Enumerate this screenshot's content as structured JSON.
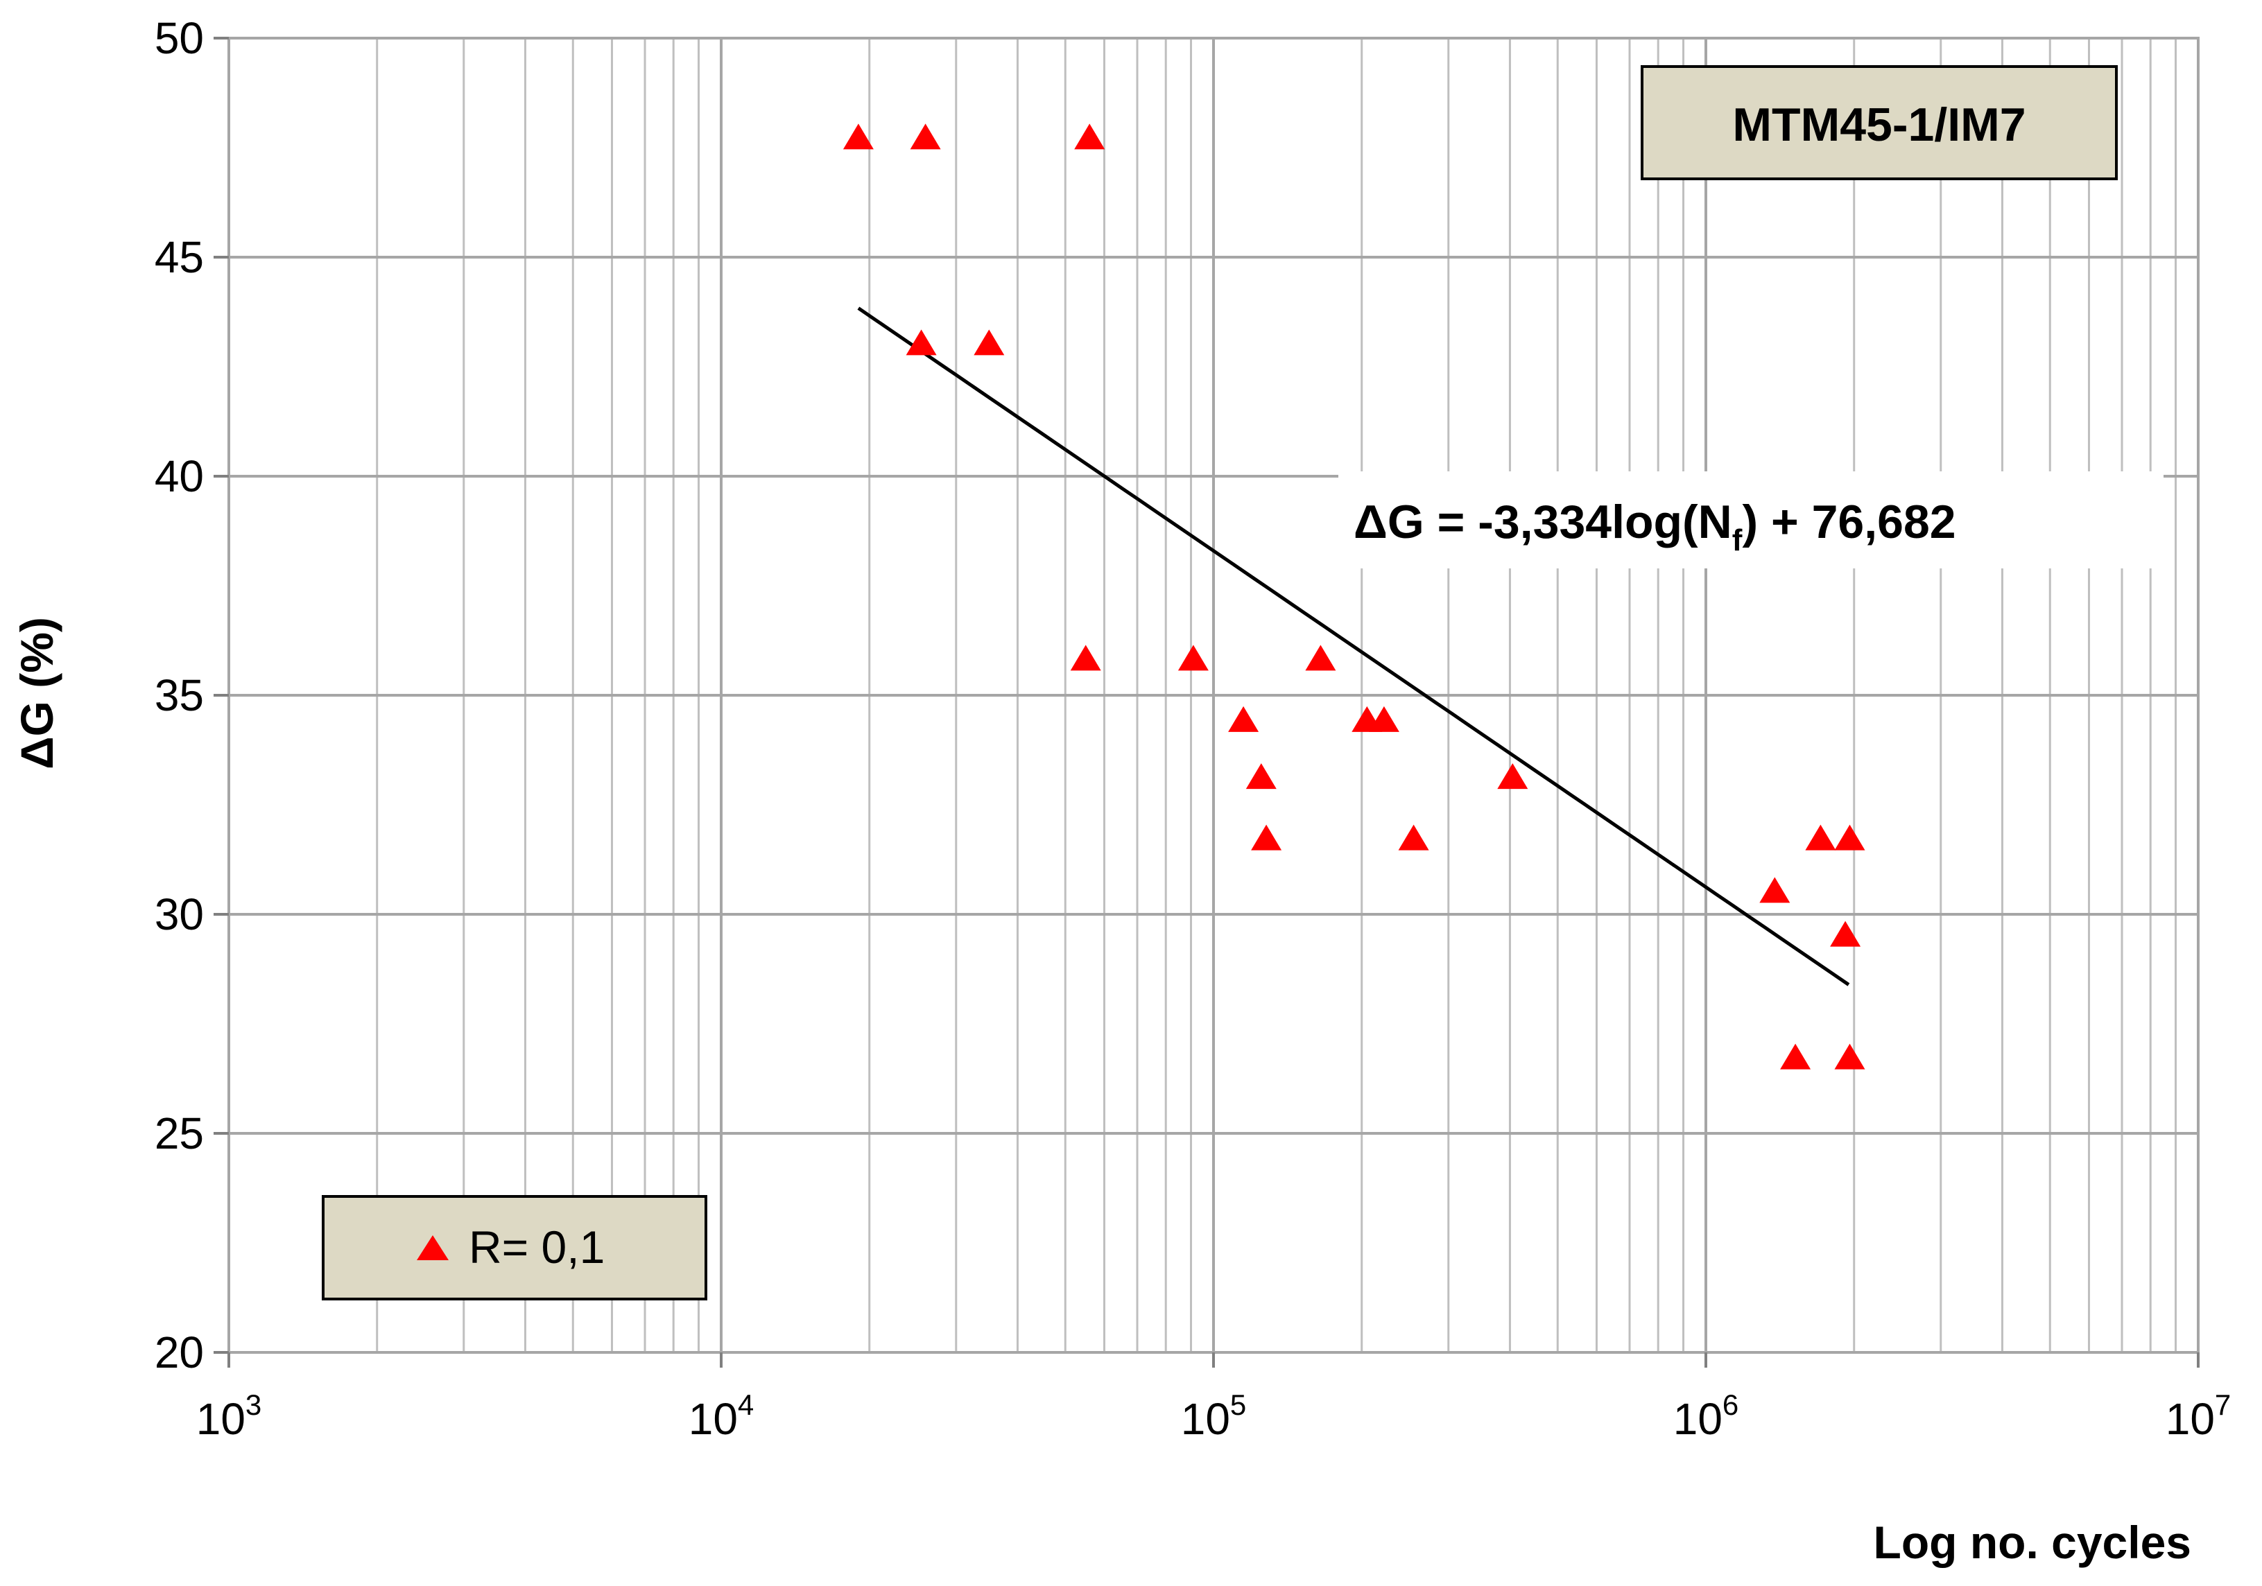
{
  "chart_data": {
    "type": "scatter",
    "title": "MTM45-1/IM7",
    "xlabel": "Log no. cycles",
    "ylabel": "ΔG (%)",
    "x_scale": "log",
    "xlim": [
      1000,
      10000000
    ],
    "ylim": [
      20,
      50
    ],
    "y_ticks": [
      20,
      25,
      30,
      35,
      40,
      45,
      50
    ],
    "x_ticks": [
      {
        "value": 1000,
        "base": "10",
        "exp": "3"
      },
      {
        "value": 10000,
        "base": "10",
        "exp": "4"
      },
      {
        "value": 100000,
        "base": "10",
        "exp": "5"
      },
      {
        "value": 1000000,
        "base": "10",
        "exp": "6"
      },
      {
        "value": 10000000,
        "base": "10",
        "exp": "7"
      }
    ],
    "grid": true,
    "series": [
      {
        "name": "R= 0,1",
        "color": "#ff0000",
        "marker": "triangle",
        "points": [
          {
            "x": 19000,
            "y": 47.7
          },
          {
            "x": 26000,
            "y": 47.7
          },
          {
            "x": 56000,
            "y": 47.7
          },
          {
            "x": 25500,
            "y": 43.0
          },
          {
            "x": 35000,
            "y": 43.0
          },
          {
            "x": 55000,
            "y": 35.8
          },
          {
            "x": 91000,
            "y": 35.8
          },
          {
            "x": 165000,
            "y": 35.8
          },
          {
            "x": 115000,
            "y": 34.4
          },
          {
            "x": 205000,
            "y": 34.4
          },
          {
            "x": 222000,
            "y": 34.4
          },
          {
            "x": 125000,
            "y": 33.1
          },
          {
            "x": 405000,
            "y": 33.1
          },
          {
            "x": 128000,
            "y": 31.7
          },
          {
            "x": 255000,
            "y": 31.7
          },
          {
            "x": 1710000,
            "y": 31.7
          },
          {
            "x": 1960000,
            "y": 31.7
          },
          {
            "x": 1380000,
            "y": 30.5
          },
          {
            "x": 1920000,
            "y": 29.5
          },
          {
            "x": 1520000,
            "y": 26.7
          },
          {
            "x": 1960000,
            "y": 26.7
          }
        ]
      }
    ],
    "trendline": {
      "equation": {
        "prefix": "ΔG = -3,334log(N",
        "sub": "f",
        "suffix": ") + 76,682"
      },
      "slope": -3.334,
      "intercept": 76.682,
      "x_range": [
        19000,
        1950000
      ],
      "color": "#000000"
    },
    "legend": {
      "label": "R= 0,1",
      "placement": "bottom-left"
    },
    "annotation_box": {
      "label": "MTM45-1/IM7",
      "placement": "top-right"
    }
  }
}
